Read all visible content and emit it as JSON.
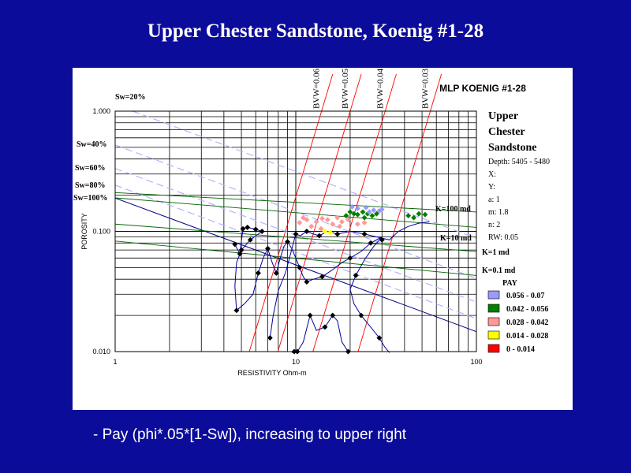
{
  "slide": {
    "title": "Upper Chester Sandstone, Koenig #1-28",
    "bullet": "- Pay (phi*.05*[1-Sw]), increasing to upper right"
  },
  "chart_data": {
    "type": "scatter",
    "title": "MLP KOENIG #1-28",
    "xlabel": "RESISTIVITY Ohm-m",
    "ylabel": "POROSITY",
    "x_scale": "log",
    "y_scale": "log",
    "xlim": [
      1,
      100
    ],
    "ylim": [
      0.01,
      1
    ],
    "x_ticks": [
      "1",
      "10",
      "100"
    ],
    "y_ticks": [
      "0.010",
      "0.100",
      "1.000"
    ],
    "grid": true,
    "info": {
      "zone": [
        "Upper",
        "Chester",
        "Sandstone"
      ],
      "params": [
        "Depth: 5405 - 5480",
        "X:",
        "Y:",
        "a: 1",
        "m: 1.8",
        "n: 2",
        "RW: 0.05"
      ]
    },
    "sw_lines": [
      {
        "label": "Sw=20%",
        "sw": 0.2
      },
      {
        "label": "Sw=40%",
        "sw": 0.4
      },
      {
        "label": "Sw=60%",
        "sw": 0.6
      },
      {
        "label": "Sw=80%",
        "sw": 0.8
      },
      {
        "label": "Sw=100%",
        "sw": 1.0
      }
    ],
    "bvw_lines": [
      {
        "label": "BVW=0.06",
        "bvw": 0.06
      },
      {
        "label": "BVW=0.05",
        "bvw": 0.05
      },
      {
        "label": "BVW=0.04",
        "bvw": 0.04
      },
      {
        "label": "BVW=0.03",
        "bvw": 0.03
      }
    ],
    "perm_lines": [
      {
        "label": "K=100 md",
        "start": [
          1,
          0.21
        ],
        "end": [
          100,
          0.145
        ]
      },
      {
        "label": "K=10 md",
        "start": [
          1,
          0.19
        ],
        "end": [
          100,
          0.108
        ]
      },
      {
        "label": "K=1 md",
        "start": [
          1,
          0.115
        ],
        "end": [
          100,
          0.068
        ]
      },
      {
        "label": "K=0.1 md",
        "start": [
          1,
          0.083
        ],
        "end": [
          100,
          0.043
        ]
      }
    ],
    "legend": {
      "title": "PAY",
      "entries": [
        {
          "label": "0.056 - 0.07",
          "color": "#9999ff"
        },
        {
          "label": "0.042 - 0.056",
          "color": "#008000"
        },
        {
          "label": "0.028 - 0.042",
          "color": "#ff9999"
        },
        {
          "label": "0.014 - 0.028",
          "color": "#ffff00"
        },
        {
          "label": "0 - 0.014",
          "color": "#ff0000"
        }
      ]
    },
    "trace": [
      [
        4.6,
        0.078
      ],
      [
        4.9,
        0.065
      ],
      [
        5.1,
        0.105
      ],
      [
        5.4,
        0.108
      ],
      [
        6.0,
        0.104
      ],
      [
        6.5,
        0.1
      ],
      [
        5.6,
        0.085
      ],
      [
        5.0,
        0.07
      ],
      [
        4.7,
        0.055
      ],
      [
        4.6,
        0.035
      ],
      [
        4.7,
        0.022
      ],
      [
        5.2,
        0.025
      ],
      [
        5.8,
        0.03
      ],
      [
        6.2,
        0.045
      ],
      [
        6.6,
        0.06
      ],
      [
        7.0,
        0.072
      ],
      [
        7.4,
        0.055
      ],
      [
        7.8,
        0.045
      ],
      [
        8.2,
        0.06
      ],
      [
        8.6,
        0.075
      ],
      [
        9.0,
        0.082
      ],
      [
        9.5,
        0.072
      ],
      [
        10.0,
        0.06
      ],
      [
        10.5,
        0.05
      ],
      [
        11.0,
        0.042
      ],
      [
        11.5,
        0.038
      ],
      [
        12.5,
        0.04
      ],
      [
        14.0,
        0.042
      ],
      [
        16.0,
        0.048
      ],
      [
        18.0,
        0.055
      ],
      [
        20.0,
        0.06
      ],
      [
        23.0,
        0.068
      ],
      [
        26.0,
        0.08
      ],
      [
        30.0,
        0.09
      ],
      [
        27.0,
        0.075
      ],
      [
        24.0,
        0.058
      ],
      [
        21.5,
        0.043
      ],
      [
        20.0,
        0.033
      ],
      [
        21.0,
        0.025
      ],
      [
        23.0,
        0.02
      ],
      [
        26.0,
        0.016
      ],
      [
        29.0,
        0.013
      ],
      [
        31.0,
        0.011
      ],
      [
        33.0,
        0.0098
      ]
    ],
    "trace2": [
      [
        7.2,
        0.013
      ],
      [
        7.5,
        0.02
      ],
      [
        8.0,
        0.032
      ],
      [
        8.8,
        0.046
      ],
      [
        10.0,
        0.095
      ],
      [
        10.6,
        0.092
      ],
      [
        11.5,
        0.1
      ],
      [
        12.5,
        0.095
      ],
      [
        13.5,
        0.092
      ],
      [
        15.0,
        0.1
      ],
      [
        17.0,
        0.095
      ],
      [
        20.0,
        0.1
      ],
      [
        24.0,
        0.095
      ],
      [
        28.0,
        0.09
      ],
      [
        33.0,
        0.085
      ],
      [
        37.0,
        0.1
      ],
      [
        42.0,
        0.11
      ],
      [
        48.0,
        0.117
      ],
      [
        55.0,
        0.12
      ]
    ],
    "trace3": [
      [
        9.5,
        0.0098
      ],
      [
        9.8,
        0.01
      ],
      [
        10.2,
        0.01
      ],
      [
        11.0,
        0.012
      ],
      [
        12.0,
        0.02
      ],
      [
        13.0,
        0.015
      ],
      [
        14.5,
        0.016
      ],
      [
        16.0,
        0.02
      ],
      [
        17.0,
        0.018
      ],
      [
        18.0,
        0.012
      ],
      [
        19.5,
        0.01
      ]
    ],
    "points_black": [
      [
        4.6,
        0.078
      ],
      [
        4.9,
        0.065
      ],
      [
        5.1,
        0.105
      ],
      [
        5.4,
        0.108
      ],
      [
        6.0,
        0.104
      ],
      [
        6.5,
        0.1
      ],
      [
        5.6,
        0.085
      ],
      [
        5.0,
        0.07
      ],
      [
        4.7,
        0.022
      ],
      [
        6.2,
        0.045
      ],
      [
        7.0,
        0.072
      ],
      [
        7.8,
        0.045
      ],
      [
        9.0,
        0.082
      ],
      [
        10.5,
        0.05
      ],
      [
        11.5,
        0.038
      ],
      [
        14.0,
        0.042
      ],
      [
        20.0,
        0.06
      ],
      [
        26.0,
        0.08
      ],
      [
        21.5,
        0.043
      ],
      [
        23.0,
        0.02
      ],
      [
        29.0,
        0.013
      ],
      [
        10.0,
        0.095
      ],
      [
        11.5,
        0.1
      ],
      [
        13.5,
        0.092
      ],
      [
        17.0,
        0.095
      ],
      [
        24.0,
        0.095
      ],
      [
        30.0,
        0.085
      ],
      [
        7.2,
        0.013
      ],
      [
        9.8,
        0.01
      ],
      [
        10.2,
        0.01
      ],
      [
        12.0,
        0.02
      ],
      [
        14.5,
        0.016
      ],
      [
        16.0,
        0.02
      ],
      [
        19.5,
        0.01
      ]
    ],
    "points_pink": [
      [
        10.5,
        0.118
      ],
      [
        11.5,
        0.125
      ],
      [
        12.2,
        0.11
      ],
      [
        13.0,
        0.12
      ],
      [
        14.0,
        0.128
      ],
      [
        15.0,
        0.125
      ],
      [
        16.0,
        0.115
      ],
      [
        17.0,
        0.13
      ],
      [
        18.0,
        0.12
      ],
      [
        19.5,
        0.125
      ],
      [
        22.0,
        0.115
      ],
      [
        24.0,
        0.118
      ],
      [
        13.8,
        0.105
      ],
      [
        11.0,
        0.13
      ],
      [
        17.5,
        0.11
      ]
    ],
    "points_yellow": [
      [
        14.5,
        0.1
      ],
      [
        15.5,
        0.098
      ]
    ],
    "points_green": [
      [
        19.0,
        0.135
      ],
      [
        20.0,
        0.145
      ],
      [
        21.0,
        0.14
      ],
      [
        22.0,
        0.138
      ],
      [
        23.5,
        0.145
      ],
      [
        25.0,
        0.14
      ],
      [
        26.5,
        0.135
      ],
      [
        28.0,
        0.14
      ],
      [
        24.0,
        0.13
      ],
      [
        42.0,
        0.135
      ],
      [
        45.0,
        0.13
      ],
      [
        48.0,
        0.14
      ],
      [
        52.0,
        0.138
      ]
    ],
    "points_lavender": [
      [
        20.5,
        0.16
      ],
      [
        22.0,
        0.155
      ],
      [
        24.5,
        0.158
      ],
      [
        27.0,
        0.15
      ],
      [
        29.0,
        0.148
      ],
      [
        30.0,
        0.152
      ],
      [
        25.5,
        0.145
      ]
    ]
  }
}
